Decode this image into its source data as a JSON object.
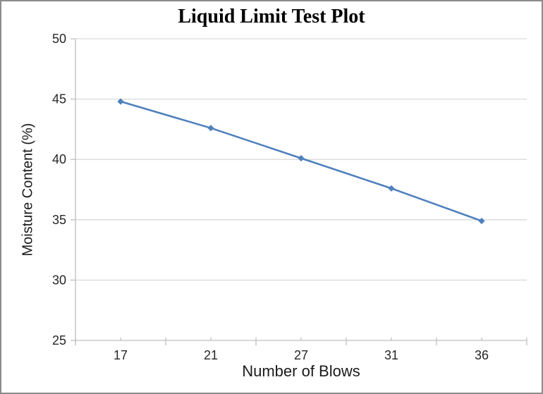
{
  "window": {
    "background": "#ffffff",
    "border_color": "#8c8c8c"
  },
  "chart_data": {
    "type": "line",
    "title": "Liquid Limit Test Plot",
    "xlabel": "Number of Blows",
    "ylabel": "Moisture Content (%)",
    "categories": [
      "17",
      "21",
      "27",
      "31",
      "36"
    ],
    "values": [
      44.8,
      42.6,
      40.1,
      37.6,
      34.9
    ],
    "ylim": [
      25,
      50
    ],
    "yticks": [
      25,
      30,
      35,
      40,
      45,
      50
    ],
    "grid": "horizontal-only",
    "legend": "none",
    "line_color": "#4f81bd",
    "marker": "diamond",
    "gridline_color": "#d9d9d9",
    "axis_color": "#bfbfbf",
    "tick_label_color": "#262626"
  }
}
